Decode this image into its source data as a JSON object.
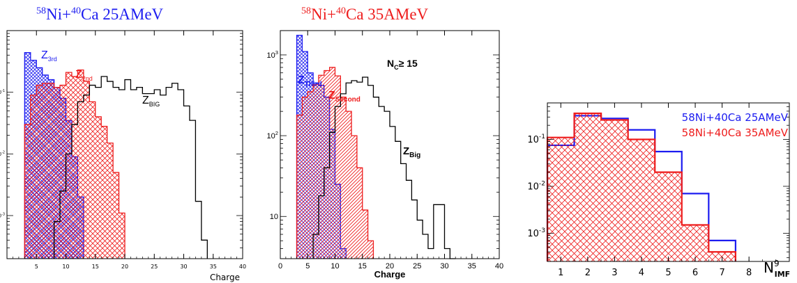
{
  "colors": {
    "blue": "#1c1cf0",
    "red": "#ee1c1c",
    "black": "#000000"
  },
  "chart_data": [
    {
      "type": "histogram",
      "title": {
        "main": "Ni+Ca  25AMeV",
        "sup_a": "58",
        "sup_b": "40",
        "text_a": "Ni+",
        "text_b": "Ca  25AMeV"
      },
      "xlabel": "Charge",
      "xlim": [
        0,
        40
      ],
      "ylim": [
        0.0002,
        1
      ],
      "yscale": "log",
      "xticks": [
        "5",
        "10",
        "15",
        "20",
        "25",
        "30",
        "35",
        "40"
      ],
      "yticks": [
        {
          "base": "10",
          "exp": "-1",
          "v": 0.1
        },
        {
          "base": "10",
          "exp": "-2",
          "v": 0.01
        },
        {
          "base": "10",
          "exp": "-3",
          "v": 0.001
        }
      ],
      "series": [
        {
          "name": "Z_3rd",
          "label": "Z",
          "sub": "3rd",
          "color": "blue",
          "fill": "crosshatch",
          "x0": 3,
          "bin": 1,
          "values": [
            0.44,
            0.33,
            0.25,
            0.19,
            0.16,
            0.12,
            0.08,
            0.035,
            0.009,
            0.002
          ]
        },
        {
          "name": "Z_2nd",
          "label": "Z",
          "sub": "2nd",
          "color": "red",
          "fill": "crosshatch",
          "x0": 3,
          "bin": 1,
          "values": [
            0.03,
            0.09,
            0.13,
            0.14,
            0.14,
            0.12,
            0.13,
            0.21,
            0.18,
            0.23,
            0.15,
            0.07,
            0.04,
            0.028,
            0.015,
            0.005,
            0.0011
          ]
        },
        {
          "name": "Z_BIG",
          "label": "Z",
          "sub": "BIG",
          "color": "black",
          "fill": "none",
          "x0": 8,
          "bin": 1,
          "values": [
            0.0008,
            0.0025,
            0.01,
            0.03,
            0.07,
            0.09,
            0.13,
            0.12,
            0.18,
            0.15,
            0.12,
            0.11,
            0.16,
            0.11,
            0.12,
            0.095,
            0.095,
            0.11,
            0.09,
            0.12,
            0.14,
            0.11,
            0.06,
            0.035,
            0.0017,
            0.0004
          ]
        }
      ]
    },
    {
      "type": "histogram",
      "title": {
        "sup_a": "58",
        "sup_b": "40",
        "text_a": "Ni+",
        "text_b": "Ca  35AMeV"
      },
      "annotation": {
        "label": "N",
        "sub": "C",
        "rest": "≥ 15"
      },
      "xlabel": "Charge",
      "xlim": [
        0,
        40
      ],
      "ylim": [
        3,
        2000
      ],
      "yscale": "log",
      "xticks": [
        "0",
        "5",
        "10",
        "15",
        "20",
        "25",
        "30",
        "35",
        "40"
      ],
      "yticks": [
        {
          "base": "10",
          "exp": "3",
          "v": 1000
        },
        {
          "base": "10",
          "exp": "2",
          "v": 100
        },
        {
          "base": "10",
          "exp": "",
          "v": 10
        }
      ],
      "series": [
        {
          "name": "Z_Third",
          "label": "Z",
          "sub": "Third",
          "color": "blue",
          "fill": "crosshatch",
          "x0": 3,
          "bin": 1,
          "values": [
            1750,
            1100,
            600,
            450,
            420,
            300,
            120,
            25,
            4
          ]
        },
        {
          "name": "Z_Second",
          "label": "Z",
          "sub": "Second",
          "color": "red",
          "fill": "hatch",
          "x0": 3,
          "bin": 1,
          "values": [
            180,
            300,
            350,
            430,
            560,
            640,
            700,
            550,
            300,
            200,
            100,
            40,
            12,
            5
          ]
        },
        {
          "name": "Z_Big",
          "label": "Z",
          "sub": "Big",
          "color": "black",
          "fill": "none",
          "x0": 6,
          "bin": 1,
          "values": [
            6,
            18,
            40,
            110,
            230,
            330,
            450,
            480,
            460,
            530,
            420,
            300,
            230,
            200,
            130,
            85,
            45,
            28,
            16,
            9,
            6,
            4,
            14,
            14,
            4,
            3
          ]
        }
      ]
    },
    {
      "type": "histogram",
      "xlabel": {
        "label": "N",
        "sup": "9",
        "sub": "IMF"
      },
      "xlim": [
        0.5,
        9.5
      ],
      "ylim": [
        0.00025,
        0.6
      ],
      "yscale": "log",
      "xticks": [
        "1",
        "2",
        "3",
        "4",
        "5",
        "6",
        "7",
        "8"
      ],
      "yticks": [
        {
          "base": "10",
          "exp": "-1",
          "v": 0.1
        },
        {
          "base": "10",
          "exp": "-2",
          "v": 0.01
        },
        {
          "base": "10",
          "exp": "-3",
          "v": 0.001
        }
      ],
      "series": [
        {
          "name": "58Ni+40Ca 25AMeV",
          "color": "blue",
          "fill": "none",
          "x0": 0.5,
          "bin": 1,
          "values": [
            0.075,
            0.32,
            0.28,
            0.16,
            0.055,
            0.007,
            0.0007
          ]
        },
        {
          "name": "58Ni+40Ca 35AMeV",
          "color": "red",
          "fill": "crosshatch",
          "x0": 0.5,
          "bin": 1,
          "values": [
            0.11,
            0.36,
            0.26,
            0.1,
            0.02,
            0.0015,
            0.0004
          ]
        }
      ],
      "legend": [
        "58Ni+40Ca 25AMeV",
        "58Ni+40Ca 35AMeV"
      ]
    }
  ]
}
